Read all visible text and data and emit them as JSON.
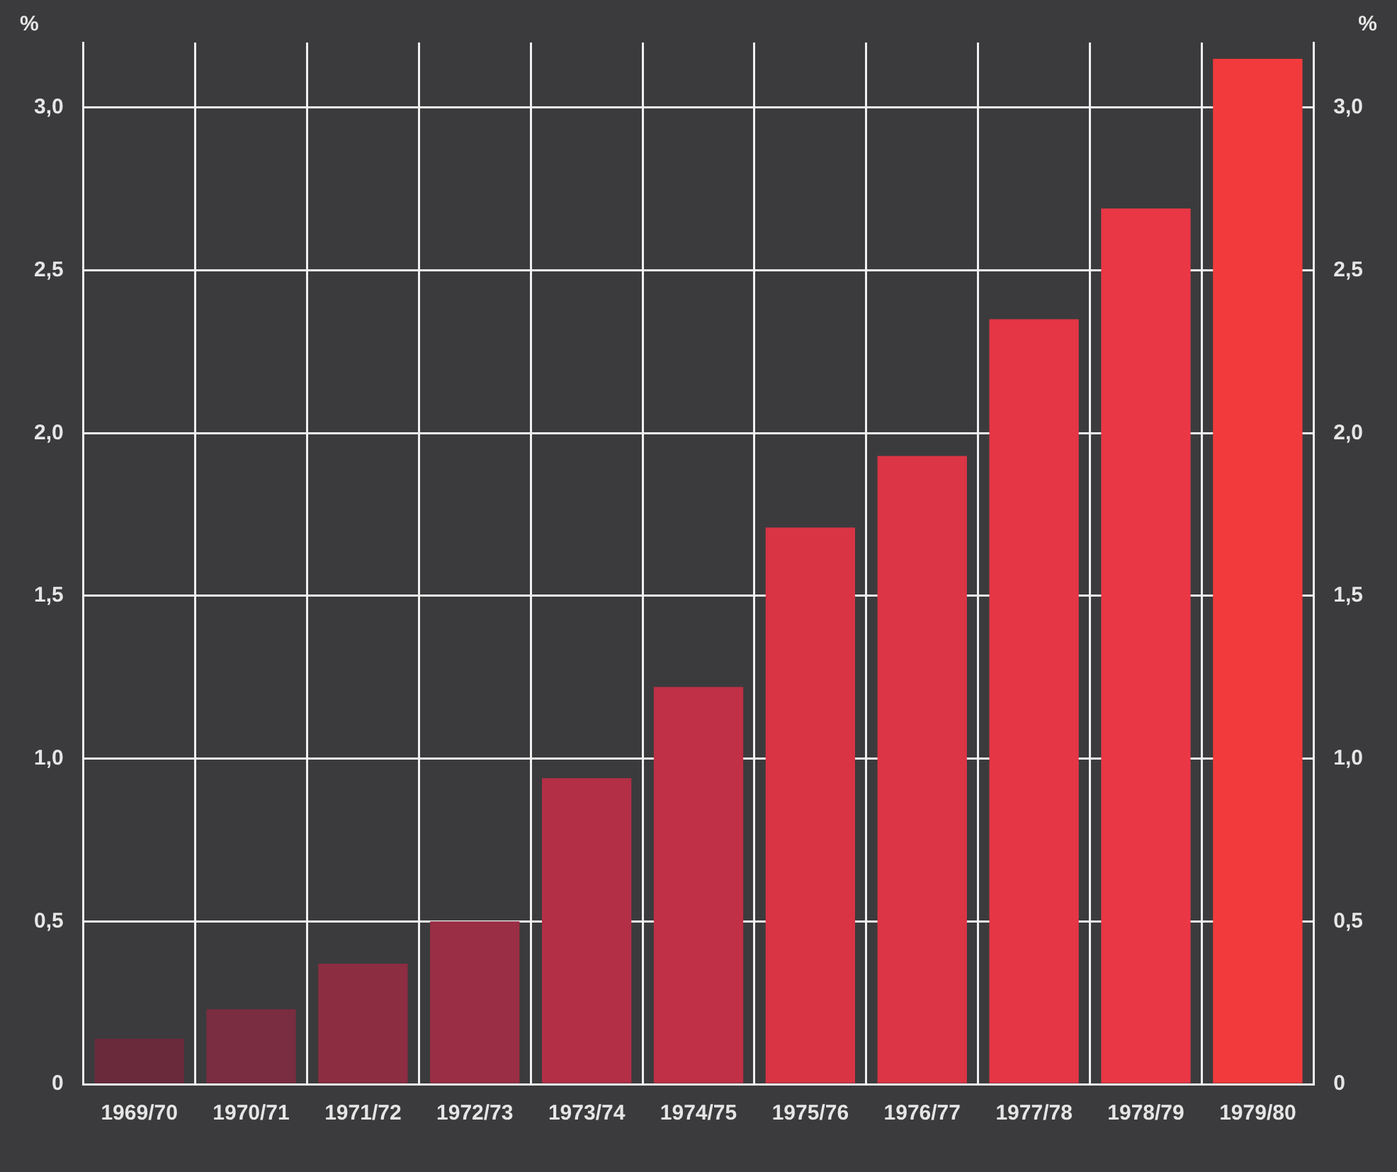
{
  "chart_data": {
    "type": "bar",
    "ylabel": "%",
    "y2label": "%",
    "categories": [
      "1969/70",
      "1970/71",
      "1971/72",
      "1972/73",
      "1973/74",
      "1974/75",
      "1975/76",
      "1976/77",
      "1977/78",
      "1978/79",
      "1979/80"
    ],
    "values": [
      0.14,
      0.23,
      0.37,
      0.5,
      0.94,
      1.22,
      1.71,
      1.93,
      2.35,
      2.69,
      3.15
    ],
    "colors": [
      "#6a2a3c",
      "#7a2c40",
      "#8c2d42",
      "#9a2e44",
      "#b22f46",
      "#c03046",
      "#d83444",
      "#dc3545",
      "#e43645",
      "#ea3745",
      "#f23a3c"
    ],
    "ylim": [
      0,
      3.2
    ],
    "yticks": [
      0,
      {
        "value": 0.5,
        "label": "0,5"
      },
      {
        "value": 1,
        "label": "1,0"
      },
      {
        "value": 1.5,
        "label": "1,5"
      },
      {
        "value": 2,
        "label": "2,0"
      },
      {
        "value": 2.5,
        "label": "2,5"
      },
      {
        "value": 3,
        "label": "3,0"
      }
    ],
    "y2lim": [
      0,
      3.2
    ],
    "y2ticks": [
      0,
      {
        "value": 0.5,
        "label": "0,5"
      },
      {
        "value": 1,
        "label": "1,0"
      },
      {
        "value": 1.5,
        "label": "1,5"
      },
      {
        "value": 2,
        "label": "2,0"
      },
      {
        "value": 2.5,
        "label": "2,5"
      },
      {
        "value": 3,
        "label": "3,0"
      }
    ],
    "grid": true,
    "legend": false
  }
}
